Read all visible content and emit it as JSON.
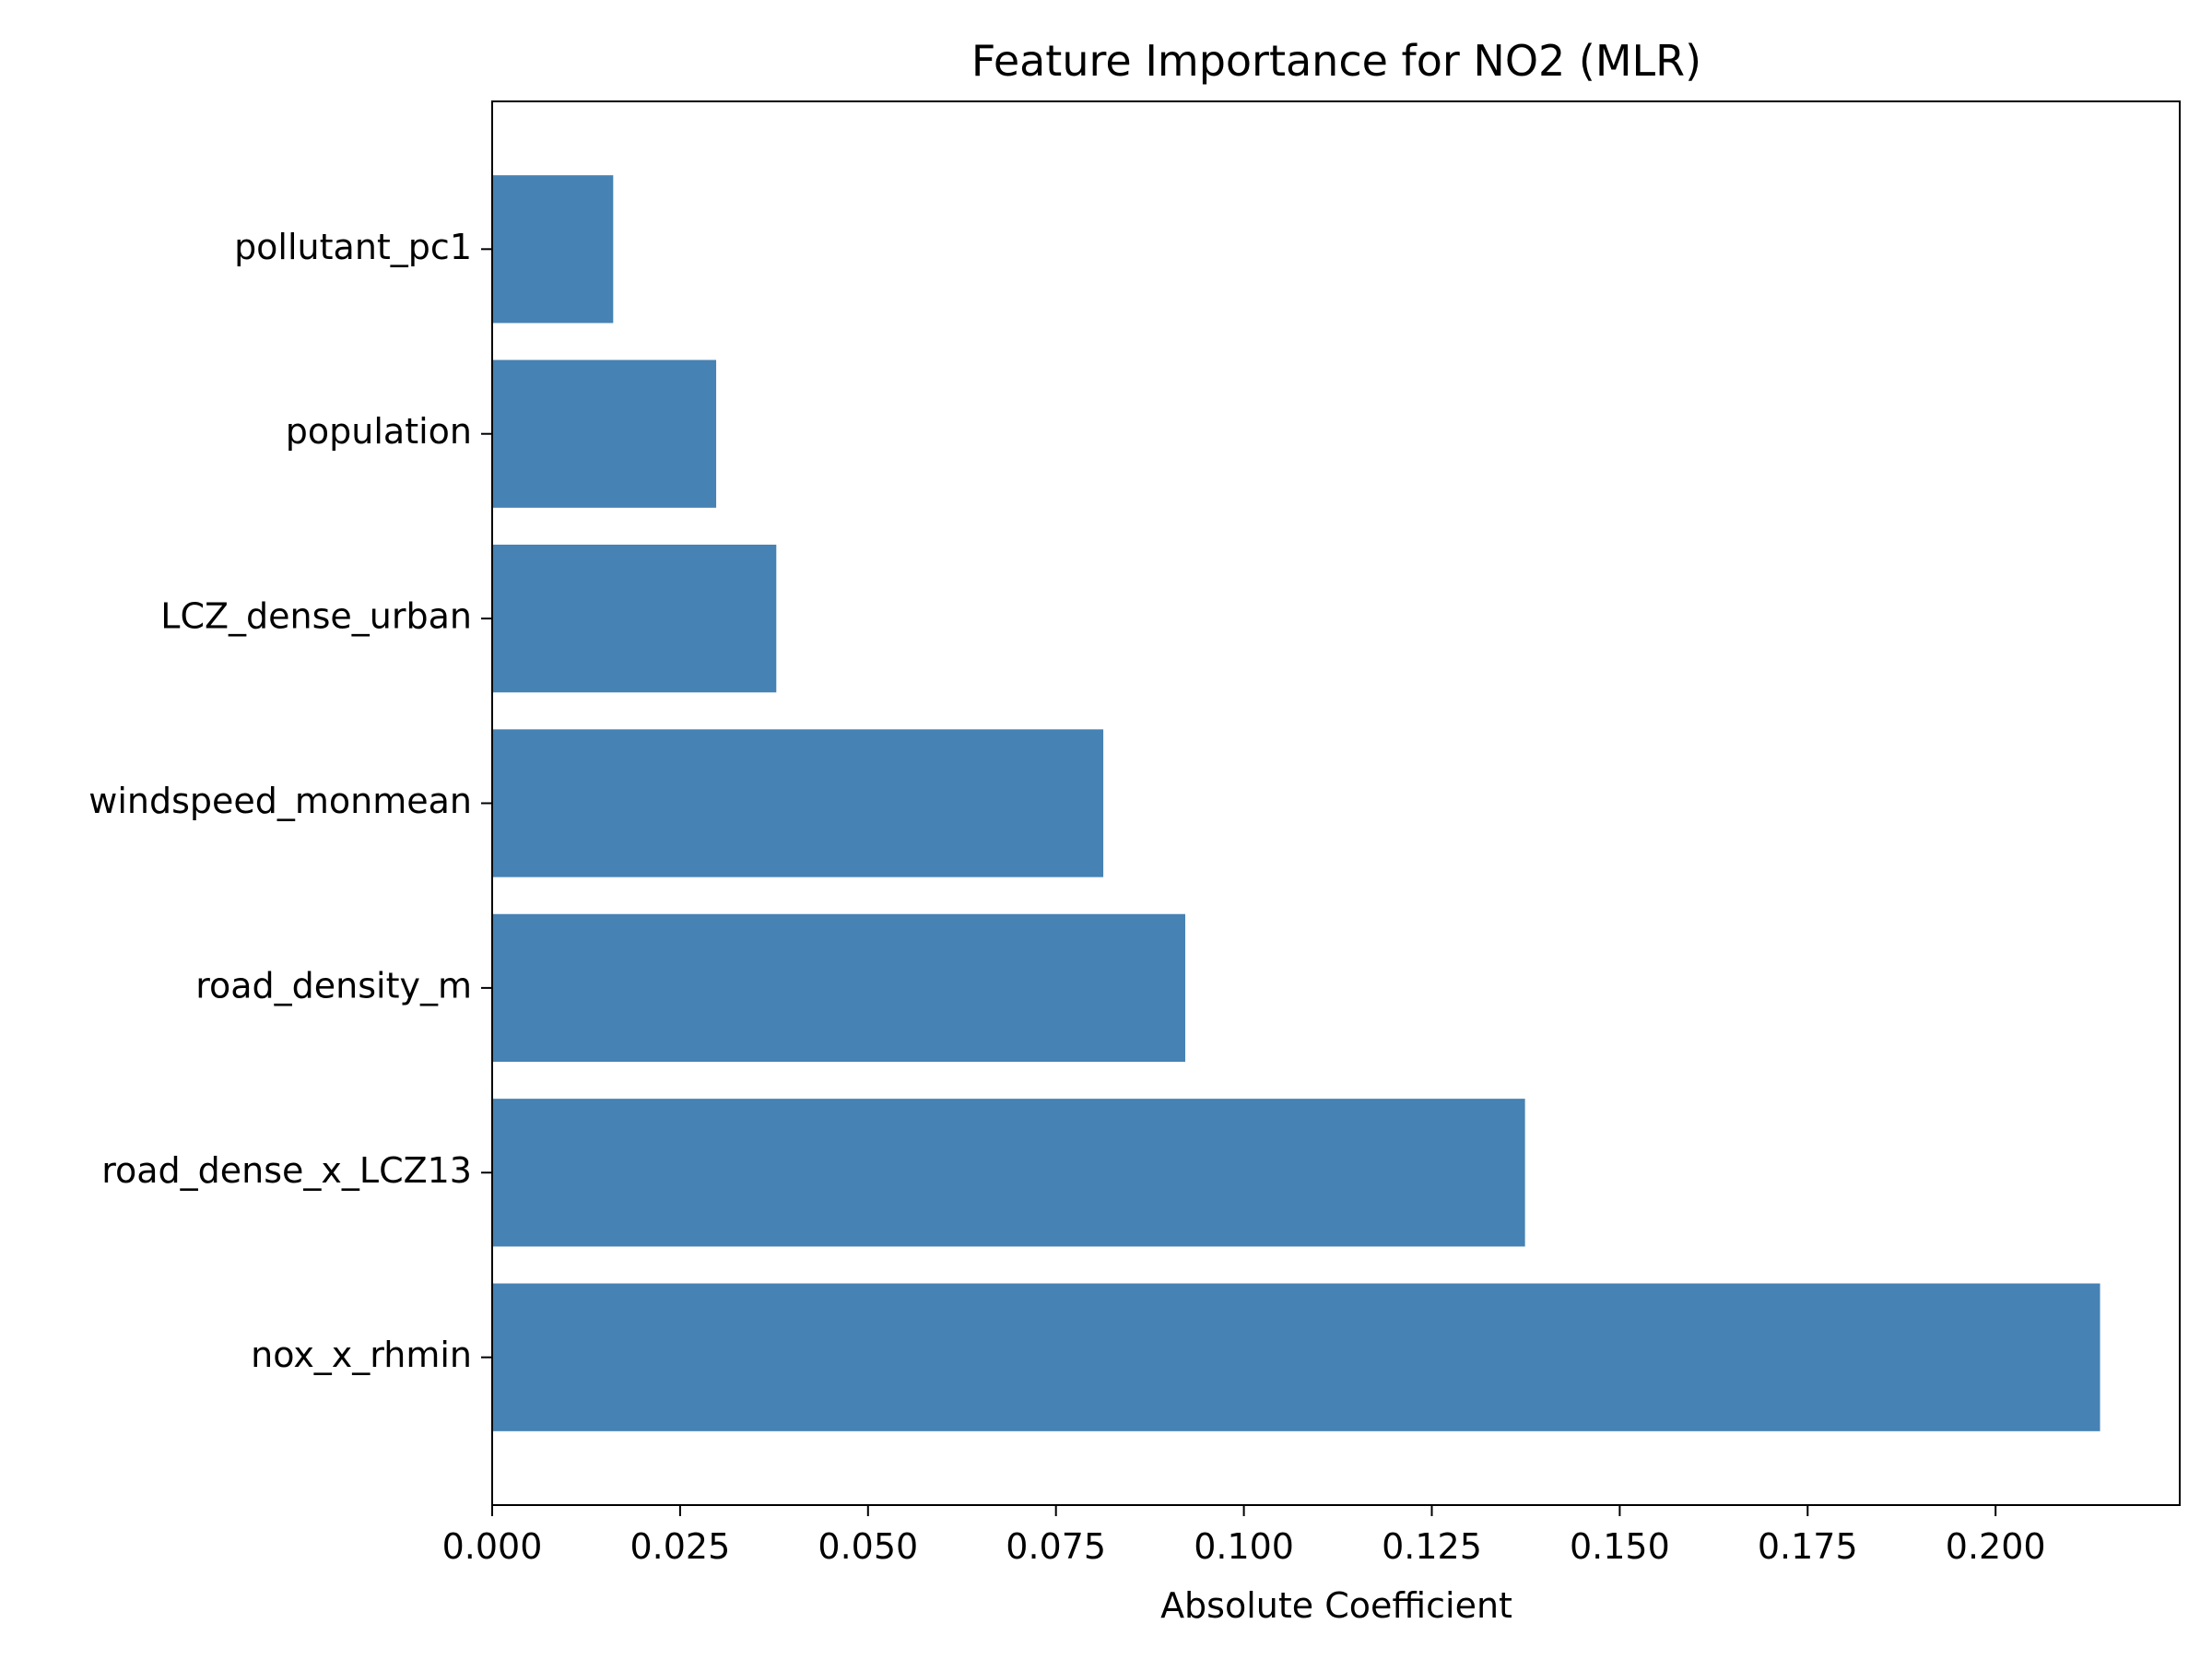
{
  "chart_data": {
    "type": "bar",
    "orientation": "horizontal",
    "title": "Feature Importance for NO2 (MLR)",
    "xlabel": "Absolute Coefficient",
    "ylabel": "",
    "xlim": [
      0,
      0.2245
    ],
    "xticks": [
      "0.000",
      "0.025",
      "0.050",
      "0.075",
      "0.100",
      "0.125",
      "0.150",
      "0.175",
      "0.200"
    ],
    "xtick_values": [
      0,
      0.025,
      0.05,
      0.075,
      0.1,
      0.125,
      0.15,
      0.175,
      0.2
    ],
    "categories": [
      "nox_x_rhmin",
      "road_dense_x_LCZ13",
      "road_density_m",
      "windspeed_monmean",
      "LCZ_dense_urban",
      "population",
      "pollutant_pc1"
    ],
    "values": [
      0.2139,
      0.1374,
      0.0922,
      0.0813,
      0.0378,
      0.0298,
      0.0161
    ],
    "bar_color": "#4682b4",
    "grid": false,
    "legend": "none"
  }
}
